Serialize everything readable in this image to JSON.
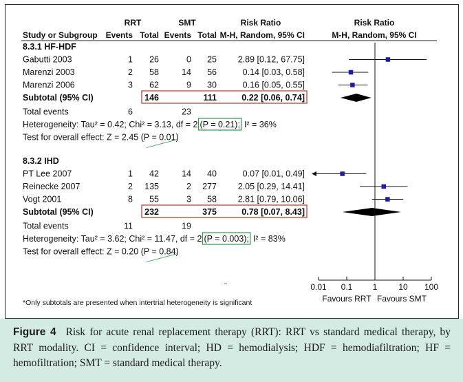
{
  "chart_data": {
    "type": "forest_plot",
    "header": {
      "group1": "RRT",
      "group2": "SMT",
      "effect_title": "Risk Ratio",
      "plot_title": "Risk Ratio",
      "col_study": "Study or Subgroup",
      "col_events1": "Events",
      "col_total1": "Total",
      "col_events2": "Events",
      "col_total2": "Total",
      "col_ci": "M-H, Random, 95% CI",
      "plot_method": "M-H, Random, 95% CI"
    },
    "subgroups": [
      {
        "title": "8.3.1 HF-HDF",
        "studies": [
          {
            "name": "Gabutti 2003",
            "events1": "1",
            "total1": "26",
            "events2": "0",
            "total2": "25",
            "ci_text": "2.89 [0.12, 67.75]",
            "rr": 2.89,
            "lo": 0.12,
            "hi": 67.75,
            "arrow_left": false
          },
          {
            "name": "Marenzi 2003",
            "events1": "2",
            "total1": "58",
            "events2": "14",
            "total2": "56",
            "ci_text": "0.14 [0.03, 0.58]",
            "rr": 0.14,
            "lo": 0.03,
            "hi": 0.58,
            "arrow_left": false
          },
          {
            "name": "Marenzi 2006",
            "events1": "3",
            "total1": "62",
            "events2": "9",
            "total2": "30",
            "ci_text": "0.16 [0.05, 0.55]",
            "rr": 0.16,
            "lo": 0.05,
            "hi": 0.55,
            "arrow_left": false
          }
        ],
        "subtotal": {
          "label": "Subtotal (95% CI)",
          "total1": "146",
          "total2": "111",
          "ci_text": "0.22 [0.06, 0.74]",
          "rr": 0.22,
          "lo": 0.06,
          "hi": 0.74
        },
        "total_events": {
          "label": "Total events",
          "events1": "6",
          "events2": "23"
        },
        "heterogeneity": {
          "pre": "Heterogeneity: Tau² = 0.42; Chi² = 3.13, df = 2",
          "p": "(P = 0.21);",
          "post": "I² = 36%"
        },
        "overall": "Test for overall effect: Z = 2.45 (P = 0.01)"
      },
      {
        "title": "8.3.2 IHD",
        "studies": [
          {
            "name": "PT Lee 2007",
            "events1": "1",
            "total1": "42",
            "events2": "14",
            "total2": "40",
            "ci_text": "0.07 [0.01, 0.49]",
            "rr": 0.07,
            "lo": 0.01,
            "hi": 0.49,
            "arrow_left": true
          },
          {
            "name": "Reinecke 2007",
            "events1": "2",
            "total1": "135",
            "events2": "2",
            "total2": "277",
            "ci_text": "2.05 [0.29, 14.41]",
            "rr": 2.05,
            "lo": 0.29,
            "hi": 14.41,
            "arrow_left": false
          },
          {
            "name": "Vogt 2001",
            "events1": "8",
            "total1": "55",
            "events2": "3",
            "total2": "58",
            "ci_text": "2.81 [0.79, 10.06]",
            "rr": 2.81,
            "lo": 0.79,
            "hi": 10.06,
            "arrow_left": false
          }
        ],
        "subtotal": {
          "label": "Subtotal (95% CI)",
          "total1": "232",
          "total2": "375",
          "ci_text": "0.78 [0.07, 8.43]",
          "rr": 0.78,
          "lo": 0.07,
          "hi": 8.43
        },
        "total_events": {
          "label": "Total events",
          "events1": "11",
          "events2": "19"
        },
        "heterogeneity": {
          "pre": "Heterogeneity: Tau² = 3.62; Chi² = 11.47, df = 2",
          "p": "(P = 0.003);",
          "post": "I² = 83%"
        },
        "overall": "Test for overall effect: Z = 0.20 (P = 0.84)"
      }
    ],
    "axis": {
      "scale": "log",
      "ticks": [
        0.01,
        0.1,
        1,
        10,
        100
      ],
      "tick_labels": [
        "0.01",
        "0.1",
        "1",
        "10",
        "100"
      ],
      "xlim": [
        0.01,
        100
      ],
      "left_label": "Favours RRT",
      "right_label": "Favours SMT"
    },
    "footnote": "*Only subtotals are presented when intertrial heterogeneity is significant",
    "colors": {
      "point": "#1c1ca8",
      "line": "#111111",
      "highlight_red": "#cc2a2a",
      "highlight_green": "#2e9a4a",
      "caption_bg": "#d3ebe3"
    }
  },
  "caption": {
    "label": "Figure 4",
    "text": "Risk for acute renal replacement therapy (RRT): RRT vs standard medical therapy, by RRT modality. CI = confidence interval; HD = hemodialysis; HDF = hemodiafiltration; HF = hemofiltration; SMT = standard medical therapy."
  }
}
